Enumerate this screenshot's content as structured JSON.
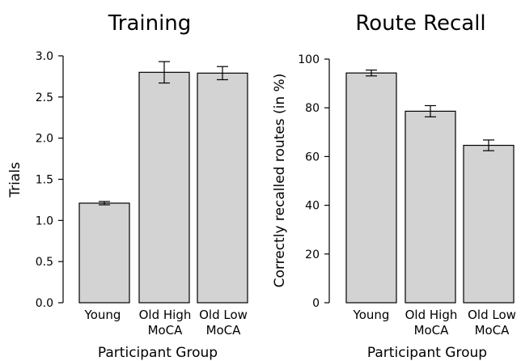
{
  "chart_data": [
    {
      "type": "bar",
      "title": "Training",
      "xlabel": "Participant Group",
      "ylabel": "Trials",
      "categories": [
        [
          "Young"
        ],
        [
          "Old High",
          "MoCA"
        ],
        [
          "Old Low",
          "MoCA"
        ]
      ],
      "values": [
        1.21,
        2.8,
        2.79
      ],
      "errors": [
        0.02,
        0.13,
        0.08
      ],
      "ylim": [
        0,
        3.0
      ],
      "yticks": [
        "0.0",
        "0.5",
        "1.0",
        "1.5",
        "2.0",
        "2.5",
        "3.0"
      ],
      "grid": false,
      "bar_color": "#d3d3d3"
    },
    {
      "type": "bar",
      "title": "Route Recall",
      "xlabel": "Participant Group",
      "ylabel": "Correctly recalled routes (in %)",
      "categories": [
        [
          "Young"
        ],
        [
          "Old High",
          "MoCA"
        ],
        [
          "Old Low",
          "MoCA"
        ]
      ],
      "values": [
        94.3,
        78.6,
        64.6
      ],
      "errors": [
        1.2,
        2.3,
        2.2
      ],
      "ylim": [
        0,
        100
      ],
      "yticks": [
        "0",
        "20",
        "40",
        "60",
        "80",
        "100"
      ],
      "grid": false,
      "bar_color": "#d3d3d3"
    }
  ]
}
